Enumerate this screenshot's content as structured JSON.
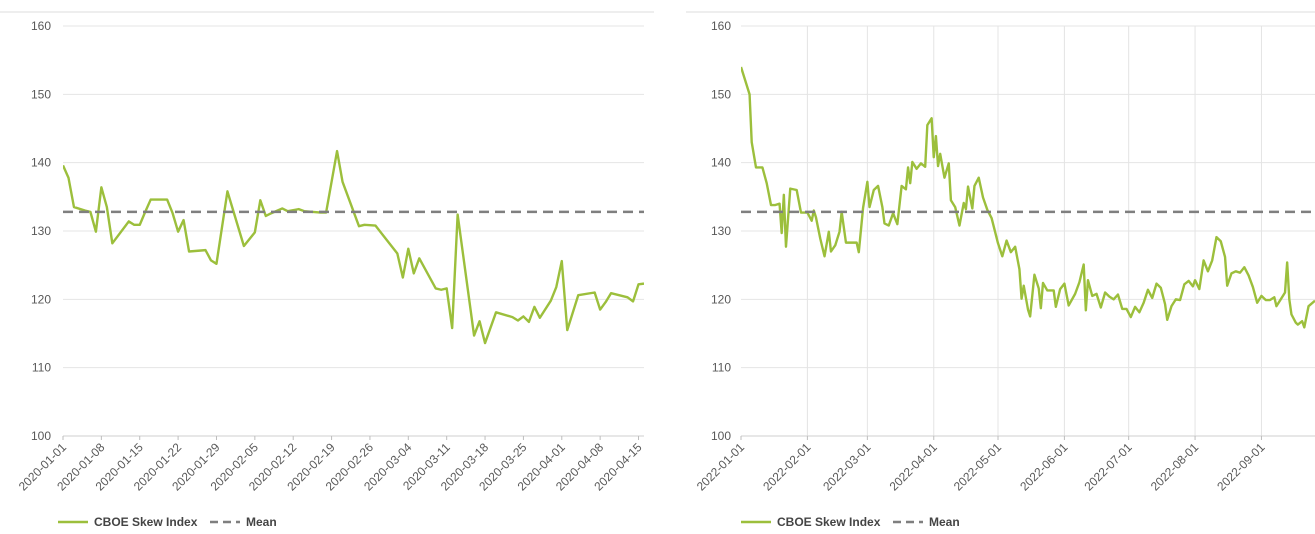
{
  "colors": {
    "series": "#9cbf3c",
    "mean": "#7f7f7f",
    "grid": "#e4e4e4",
    "text": "#595959"
  },
  "chart_data": [
    {
      "type": "line",
      "title": "",
      "xlabel": "",
      "ylabel": "",
      "ylim": [
        100,
        160
      ],
      "yticks": [
        100,
        110,
        120,
        130,
        140,
        150,
        160
      ],
      "x_range": [
        "2020-01-01",
        "2020-04-16"
      ],
      "x_tick_labels": [
        "2020-01-01",
        "2020-01-08",
        "2020-01-15",
        "2020-01-22",
        "2020-01-29",
        "2020-02-05",
        "2020-02-12",
        "2020-02-19",
        "2020-02-26",
        "2020-03-04",
        "2020-03-11",
        "2020-03-18",
        "2020-03-25",
        "2020-04-01",
        "2020-04-08",
        "2020-04-15"
      ],
      "vertical_grid": false,
      "legend_position": "bottom-left",
      "series": [
        {
          "name": "CBOE Skew Index",
          "points": [
            [
              "2020-01-01",
              139.6
            ],
            [
              "2020-01-02",
              137.8
            ],
            [
              "2020-01-03",
              133.5
            ],
            [
              "2020-01-05",
              133.0
            ],
            [
              "2020-01-06",
              132.8
            ],
            [
              "2020-01-07",
              129.9
            ],
            [
              "2020-01-08",
              136.4
            ],
            [
              "2020-01-09",
              133.5
            ],
            [
              "2020-01-10",
              128.2
            ],
            [
              "2020-01-13",
              131.4
            ],
            [
              "2020-01-14",
              130.9
            ],
            [
              "2020-01-15",
              130.9
            ],
            [
              "2020-01-16",
              132.8
            ],
            [
              "2020-01-17",
              134.6
            ],
            [
              "2020-01-20",
              134.6
            ],
            [
              "2020-01-21",
              132.6
            ],
            [
              "2020-01-22",
              129.9
            ],
            [
              "2020-01-23",
              131.6
            ],
            [
              "2020-01-24",
              127.0
            ],
            [
              "2020-01-27",
              127.2
            ],
            [
              "2020-01-28",
              125.7
            ],
            [
              "2020-01-29",
              125.2
            ],
            [
              "2020-01-31",
              135.8
            ],
            [
              "2020-02-03",
              127.8
            ],
            [
              "2020-02-05",
              129.8
            ],
            [
              "2020-02-06",
              134.5
            ],
            [
              "2020-02-07",
              132.2
            ],
            [
              "2020-02-08",
              132.6
            ],
            [
              "2020-02-10",
              133.3
            ],
            [
              "2020-02-11",
              132.9
            ],
            [
              "2020-02-13",
              133.2
            ],
            [
              "2020-02-14",
              132.9
            ],
            [
              "2020-02-17",
              132.7
            ],
            [
              "2020-02-18",
              132.7
            ],
            [
              "2020-02-20",
              141.7
            ],
            [
              "2020-02-21",
              137.2
            ],
            [
              "2020-02-24",
              130.7
            ],
            [
              "2020-02-25",
              130.9
            ],
            [
              "2020-02-27",
              130.8
            ],
            [
              "2020-03-02",
              126.7
            ],
            [
              "2020-03-03",
              123.2
            ],
            [
              "2020-03-04",
              127.4
            ],
            [
              "2020-03-05",
              123.8
            ],
            [
              "2020-03-06",
              126.0
            ],
            [
              "2020-03-09",
              121.6
            ],
            [
              "2020-03-10",
              121.4
            ],
            [
              "2020-03-11",
              121.6
            ],
            [
              "2020-03-12",
              115.8
            ],
            [
              "2020-03-13",
              132.4
            ],
            [
              "2020-03-16",
              114.7
            ],
            [
              "2020-03-17",
              116.8
            ],
            [
              "2020-03-18",
              113.6
            ],
            [
              "2020-03-20",
              118.1
            ],
            [
              "2020-03-23",
              117.4
            ],
            [
              "2020-03-24",
              116.9
            ],
            [
              "2020-03-25",
              117.5
            ],
            [
              "2020-03-26",
              116.7
            ],
            [
              "2020-03-27",
              118.9
            ],
            [
              "2020-03-28",
              117.3
            ],
            [
              "2020-03-30",
              119.8
            ],
            [
              "2020-03-31",
              121.8
            ],
            [
              "2020-04-01",
              125.6
            ],
            [
              "2020-04-02",
              115.5
            ],
            [
              "2020-04-04",
              120.6
            ],
            [
              "2020-04-07",
              121.0
            ],
            [
              "2020-04-08",
              118.5
            ],
            [
              "2020-04-09",
              119.6
            ],
            [
              "2020-04-10",
              120.9
            ],
            [
              "2020-04-13",
              120.3
            ],
            [
              "2020-04-14",
              119.7
            ],
            [
              "2020-04-15",
              122.2
            ],
            [
              "2020-04-16",
              122.3
            ]
          ]
        },
        {
          "name": "Mean",
          "value": 132.8
        }
      ]
    },
    {
      "type": "line",
      "title": "",
      "xlabel": "",
      "ylabel": "",
      "ylim": [
        100,
        160
      ],
      "yticks": [
        100,
        110,
        120,
        130,
        140,
        150,
        160
      ],
      "x_range": [
        "2022-01-01",
        "2022-09-26"
      ],
      "x_tick_labels": [
        "2022-01-01",
        "2022-02-01",
        "2022-03-01",
        "2022-04-01",
        "2022-05-01",
        "2022-06-01",
        "2022-07-01",
        "2022-08-01",
        "2022-09-01"
      ],
      "vertical_grid": true,
      "legend_position": "bottom-left",
      "series": [
        {
          "name": "CBOE Skew Index",
          "points": [
            [
              "2022-01-01",
              154.0
            ],
            [
              "2022-01-03",
              152.0
            ],
            [
              "2022-01-05",
              150.0
            ],
            [
              "2022-01-06",
              143.0
            ],
            [
              "2022-01-08",
              139.3
            ],
            [
              "2022-01-11",
              139.3
            ],
            [
              "2022-01-13",
              137.0
            ],
            [
              "2022-01-15",
              133.8
            ],
            [
              "2022-01-17",
              133.8
            ],
            [
              "2022-01-19",
              134.0
            ],
            [
              "2022-01-20",
              129.7
            ],
            [
              "2022-01-21",
              135.3
            ],
            [
              "2022-01-22",
              127.7
            ],
            [
              "2022-01-24",
              136.2
            ],
            [
              "2022-01-27",
              136.0
            ],
            [
              "2022-01-29",
              132.7
            ],
            [
              "2022-02-01",
              132.7
            ],
            [
              "2022-02-03",
              131.5
            ],
            [
              "2022-02-04",
              133.0
            ],
            [
              "2022-02-05",
              132.0
            ],
            [
              "2022-02-07",
              128.9
            ],
            [
              "2022-02-09",
              126.3
            ],
            [
              "2022-02-11",
              129.9
            ],
            [
              "2022-02-12",
              127.0
            ],
            [
              "2022-02-14",
              127.9
            ],
            [
              "2022-02-16",
              129.9
            ],
            [
              "2022-02-17",
              132.8
            ],
            [
              "2022-02-19",
              128.3
            ],
            [
              "2022-02-22",
              128.3
            ],
            [
              "2022-02-24",
              128.3
            ],
            [
              "2022-02-25",
              126.9
            ],
            [
              "2022-02-27",
              133.4
            ],
            [
              "2022-03-01",
              137.2
            ],
            [
              "2022-03-02",
              133.5
            ],
            [
              "2022-03-04",
              136.0
            ],
            [
              "2022-03-06",
              136.6
            ],
            [
              "2022-03-08",
              133.5
            ],
            [
              "2022-03-09",
              131.1
            ],
            [
              "2022-03-11",
              130.8
            ],
            [
              "2022-03-13",
              132.6
            ],
            [
              "2022-03-15",
              131.0
            ],
            [
              "2022-03-17",
              136.6
            ],
            [
              "2022-03-19",
              136.1
            ],
            [
              "2022-03-20",
              139.3
            ],
            [
              "2022-03-21",
              137.0
            ],
            [
              "2022-03-22",
              140.1
            ],
            [
              "2022-03-24",
              139.1
            ],
            [
              "2022-03-26",
              139.9
            ],
            [
              "2022-03-28",
              139.4
            ],
            [
              "2022-03-29",
              145.5
            ],
            [
              "2022-03-31",
              146.5
            ],
            [
              "2022-04-01",
              140.8
            ],
            [
              "2022-04-02",
              143.9
            ],
            [
              "2022-04-03",
              139.5
            ],
            [
              "2022-04-04",
              141.3
            ],
            [
              "2022-04-06",
              137.8
            ],
            [
              "2022-04-08",
              139.9
            ],
            [
              "2022-04-09",
              134.5
            ],
            [
              "2022-04-11",
              133.5
            ],
            [
              "2022-04-13",
              130.8
            ],
            [
              "2022-04-15",
              134.1
            ],
            [
              "2022-04-16",
              133.2
            ],
            [
              "2022-04-17",
              136.5
            ],
            [
              "2022-04-19",
              133.3
            ],
            [
              "2022-04-20",
              136.6
            ],
            [
              "2022-04-22",
              137.8
            ],
            [
              "2022-04-24",
              134.9
            ],
            [
              "2022-04-26",
              133.1
            ],
            [
              "2022-04-28",
              131.9
            ],
            [
              "2022-05-01",
              128.2
            ],
            [
              "2022-05-03",
              126.3
            ],
            [
              "2022-05-05",
              128.6
            ],
            [
              "2022-05-07",
              126.9
            ],
            [
              "2022-05-09",
              127.7
            ],
            [
              "2022-05-11",
              124.4
            ],
            [
              "2022-05-12",
              120.1
            ],
            [
              "2022-05-13",
              122.0
            ],
            [
              "2022-05-15",
              118.5
            ],
            [
              "2022-05-16",
              117.5
            ],
            [
              "2022-05-18",
              123.6
            ],
            [
              "2022-05-20",
              121.6
            ],
            [
              "2022-05-21",
              118.7
            ],
            [
              "2022-05-22",
              122.4
            ],
            [
              "2022-05-24",
              121.3
            ],
            [
              "2022-05-27",
              121.3
            ],
            [
              "2022-05-28",
              118.9
            ],
            [
              "2022-05-30",
              121.5
            ],
            [
              "2022-06-01",
              122.3
            ],
            [
              "2022-06-03",
              119.1
            ],
            [
              "2022-06-06",
              120.8
            ],
            [
              "2022-06-08",
              122.5
            ],
            [
              "2022-06-10",
              125.1
            ],
            [
              "2022-06-11",
              118.4
            ],
            [
              "2022-06-12",
              122.8
            ],
            [
              "2022-06-14",
              120.5
            ],
            [
              "2022-06-16",
              120.8
            ],
            [
              "2022-06-18",
              118.8
            ],
            [
              "2022-06-20",
              121.0
            ],
            [
              "2022-06-22",
              120.4
            ],
            [
              "2022-06-24",
              120.0
            ],
            [
              "2022-06-26",
              120.7
            ],
            [
              "2022-06-28",
              118.6
            ],
            [
              "2022-06-30",
              118.6
            ],
            [
              "2022-07-02",
              117.4
            ],
            [
              "2022-07-04",
              118.9
            ],
            [
              "2022-07-06",
              118.1
            ],
            [
              "2022-07-08",
              119.5
            ],
            [
              "2022-07-10",
              121.4
            ],
            [
              "2022-07-12",
              120.2
            ],
            [
              "2022-07-14",
              122.3
            ],
            [
              "2022-07-16",
              121.7
            ],
            [
              "2022-07-18",
              119.3
            ],
            [
              "2022-07-19",
              117.0
            ],
            [
              "2022-07-21",
              119.0
            ],
            [
              "2022-07-23",
              120.0
            ],
            [
              "2022-07-25",
              119.9
            ],
            [
              "2022-07-27",
              122.2
            ],
            [
              "2022-07-29",
              122.7
            ],
            [
              "2022-07-31",
              121.9
            ],
            [
              "2022-08-01",
              122.8
            ],
            [
              "2022-08-03",
              121.5
            ],
            [
              "2022-08-05",
              125.7
            ],
            [
              "2022-08-07",
              124.1
            ],
            [
              "2022-08-09",
              125.7
            ],
            [
              "2022-08-11",
              129.1
            ],
            [
              "2022-08-13",
              128.5
            ],
            [
              "2022-08-15",
              126.2
            ],
            [
              "2022-08-16",
              122.0
            ],
            [
              "2022-08-18",
              123.8
            ],
            [
              "2022-08-20",
              124.1
            ],
            [
              "2022-08-22",
              123.9
            ],
            [
              "2022-08-24",
              124.7
            ],
            [
              "2022-08-26",
              123.5
            ],
            [
              "2022-08-28",
              121.8
            ],
            [
              "2022-08-30",
              119.5
            ],
            [
              "2022-09-01",
              120.5
            ],
            [
              "2022-09-03",
              119.9
            ],
            [
              "2022-09-05",
              119.9
            ],
            [
              "2022-09-07",
              120.3
            ],
            [
              "2022-09-08",
              119.0
            ],
            [
              "2022-09-10",
              120.0
            ],
            [
              "2022-09-12",
              121.0
            ],
            [
              "2022-09-13",
              125.4
            ],
            [
              "2022-09-14",
              120.0
            ],
            [
              "2022-09-15",
              117.8
            ],
            [
              "2022-09-17",
              116.6
            ],
            [
              "2022-09-18",
              116.3
            ],
            [
              "2022-09-20",
              116.8
            ],
            [
              "2022-09-21",
              115.9
            ],
            [
              "2022-09-23",
              119.0
            ],
            [
              "2022-09-26",
              119.8
            ]
          ]
        },
        {
          "name": "Mean",
          "value": 132.8
        }
      ]
    }
  ]
}
